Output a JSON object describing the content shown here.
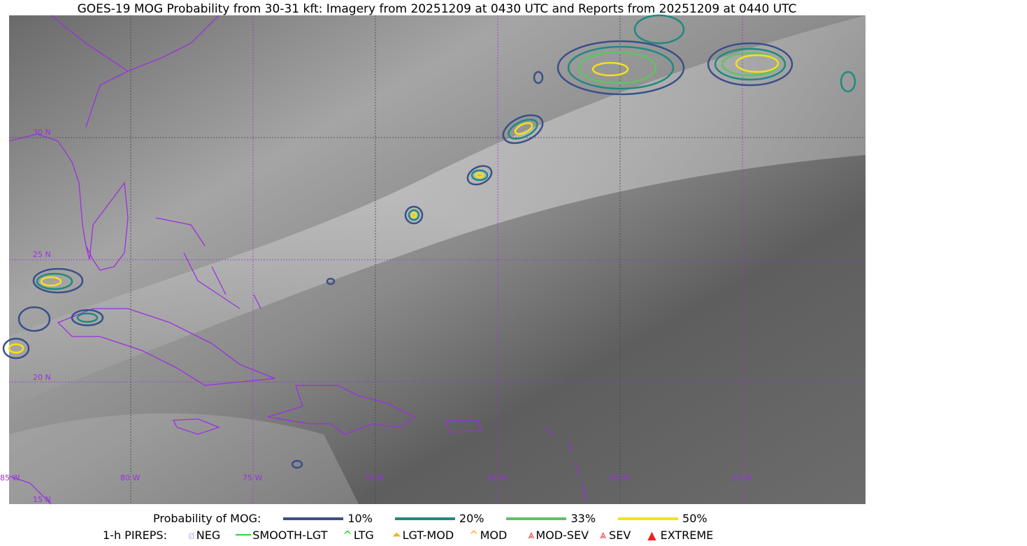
{
  "title": "GOES-19 MOG Probability from 30-31 kft: Imagery from 20251209 at 0430 UTC and Reports from 20251209 at 0440 UTC",
  "map": {
    "lon_labels": [
      "85 W",
      "80 W",
      "75 W",
      "70 W",
      "65 W",
      "60 W",
      "55 W"
    ],
    "lat_labels": [
      "30 N",
      "25 N",
      "20 N",
      "15 N"
    ],
    "grid_color": "#9b30e0",
    "coast_color": "#9b30e0"
  },
  "legend": {
    "prob_label": "Probability of MOG:",
    "prob_levels": [
      {
        "label": "10%",
        "color": "#3b4f8a"
      },
      {
        "label": "20%",
        "color": "#1f8a80"
      },
      {
        "label": "33%",
        "color": "#5cc463"
      },
      {
        "label": "50%",
        "color": "#f5e11a"
      }
    ],
    "pirep_label": "1-h PIREPS:",
    "pireps": [
      {
        "label": "NEG",
        "icon": "neg-icon",
        "color": "#c8c8f0"
      },
      {
        "label": "SMOOTH-LGT",
        "icon": "line-icon",
        "color": "#22dd22"
      },
      {
        "label": "LTG",
        "icon": "caret-icon",
        "color": "#00dd00"
      },
      {
        "label": "LGT-MOD",
        "icon": "triangle-caret-icon",
        "color": "#f5b020"
      },
      {
        "label": "MOD",
        "icon": "caret-icon",
        "color": "#f5b020"
      },
      {
        "label": "MOD-SEV",
        "icon": "double-caret-icon",
        "color": "#ee3030"
      },
      {
        "label": "SEV",
        "icon": "double-caret-icon",
        "color": "#ee3030"
      },
      {
        "label": "EXTREME",
        "icon": "filled-triangle-icon",
        "color": "#ee2020"
      }
    ]
  }
}
